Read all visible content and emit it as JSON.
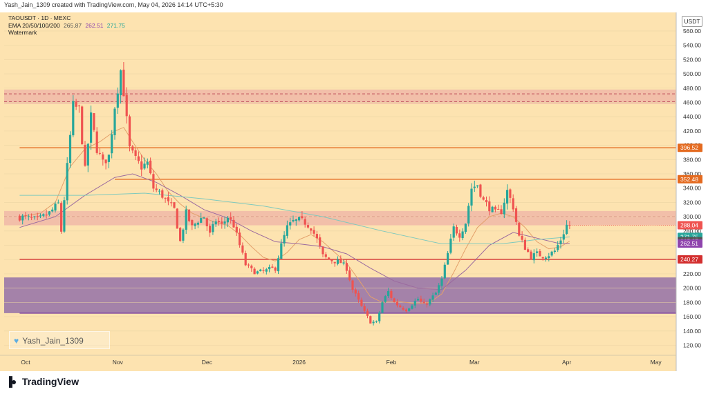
{
  "header": "Yash_Jain_1309 created with TradingView.com, May 04, 2026 14:14 UTC+5:30",
  "legend": {
    "symbol": "TAOUSDT · 1D · MEXC",
    "ema_label": "EMA 20/50/100/200",
    "ema_values": [
      "265.87",
      "262.51",
      "271.75"
    ],
    "watermark": "Watermark"
  },
  "currency": "USDT",
  "watermark_user": "Yash_Jain_1309",
  "footer": {
    "brand": "TradingView"
  },
  "colors": {
    "background": "#fde3b0",
    "supply_zone": "#f0b8a8",
    "demand_zone": "#9c79a8",
    "up_candle": "#26a69a",
    "down_candle": "#ef5350",
    "horizontal_level": "#e46a1f",
    "support_level": "#d32f2f",
    "ema_orange": "#e3a06b",
    "ema_purple": "#9b6a9f",
    "ema_teal": "#7fc9bd"
  },
  "chart_data": {
    "type": "candlestick",
    "ylim": [
      106,
      586
    ],
    "y_ticks": [
      120,
      140,
      160,
      180,
      200,
      220,
      240,
      260,
      280,
      300,
      320,
      340,
      360,
      380,
      400,
      420,
      440,
      460,
      480,
      500,
      520,
      540,
      560
    ],
    "x_ticks": [
      {
        "label": "Oct",
        "day": 0
      },
      {
        "label": "Nov",
        "day": 31
      },
      {
        "label": "Dec",
        "day": 61
      },
      {
        "label": "2026",
        "day": 92
      },
      {
        "label": "Feb",
        "day": 123
      },
      {
        "label": "Mar",
        "day": 151
      },
      {
        "label": "Apr",
        "day": 182
      },
      {
        "label": "May",
        "day": 212
      }
    ],
    "price_tags": [
      {
        "label": "396.52",
        "value": 396.52,
        "color": "#e46a1f"
      },
      {
        "label": "352.48",
        "value": 352.48,
        "color": "#e46a1f"
      },
      {
        "label": "288.04",
        "value": 288.04,
        "color": "#ef5350"
      },
      {
        "label": "271.75",
        "value": 271.75,
        "color": "#26a69a"
      },
      {
        "label": "265.87",
        "value": 265.87,
        "color": "#555555"
      },
      {
        "label": "262.51",
        "value": 262.51,
        "color": "#8e44ad"
      },
      {
        "label": "240.27",
        "value": 240.27,
        "color": "#d32f2f"
      }
    ],
    "zones": [
      {
        "name": "supply",
        "top": 478,
        "bottom": 458,
        "dashed": [
          472,
          461
        ]
      },
      {
        "name": "resistance",
        "top": 308,
        "bottom": 288,
        "dashed": [
          300
        ]
      },
      {
        "name": "demand",
        "top": 215,
        "bottom": 165
      }
    ],
    "levels": [
      {
        "value": 396.52,
        "start_day": -2,
        "color": "#e46a1f"
      },
      {
        "value": 352.48,
        "start_day": 30,
        "color": "#e46a1f"
      },
      {
        "value": 240.27,
        "start_day": -2,
        "color": "#d32f2f"
      },
      {
        "value": 165,
        "start_day": -2,
        "color": "#7b3fa0"
      }
    ],
    "last_price": 288.04,
    "close_path": [
      [
        -2,
        300
      ],
      [
        4,
        295
      ],
      [
        8,
        305
      ],
      [
        11,
        318
      ],
      [
        12,
        280
      ],
      [
        14,
        370
      ],
      [
        16,
        455
      ],
      [
        18,
        450
      ],
      [
        20,
        365
      ],
      [
        22,
        440
      ],
      [
        24,
        395
      ],
      [
        26,
        375
      ],
      [
        28,
        385
      ],
      [
        30,
        455
      ],
      [
        32,
        505
      ],
      [
        33,
        475
      ],
      [
        35,
        395
      ],
      [
        37,
        380
      ],
      [
        39,
        370
      ],
      [
        41,
        375
      ],
      [
        43,
        340
      ],
      [
        46,
        330
      ],
      [
        48,
        318
      ],
      [
        50,
        310
      ],
      [
        52,
        265
      ],
      [
        54,
        305
      ],
      [
        56,
        285
      ],
      [
        58,
        295
      ],
      [
        60,
        300
      ],
      [
        62,
        275
      ],
      [
        64,
        295
      ],
      [
        66,
        288
      ],
      [
        68,
        300
      ],
      [
        70,
        288
      ],
      [
        72,
        260
      ],
      [
        74,
        233
      ],
      [
        76,
        225
      ],
      [
        78,
        222
      ],
      [
        80,
        223
      ],
      [
        82,
        226
      ],
      [
        84,
        228
      ],
      [
        86,
        260
      ],
      [
        88,
        285
      ],
      [
        90,
        293
      ],
      [
        92,
        295
      ],
      [
        94,
        292
      ],
      [
        96,
        285
      ],
      [
        98,
        268
      ],
      [
        100,
        245
      ],
      [
        102,
        240
      ],
      [
        104,
        238
      ],
      [
        106,
        236
      ],
      [
        108,
        228
      ],
      [
        110,
        198
      ],
      [
        112,
        182
      ],
      [
        114,
        166
      ],
      [
        116,
        153
      ],
      [
        118,
        152
      ],
      [
        120,
        180
      ],
      [
        122,
        195
      ],
      [
        124,
        180
      ],
      [
        126,
        174
      ],
      [
        128,
        170
      ],
      [
        130,
        178
      ],
      [
        132,
        185
      ],
      [
        134,
        176
      ],
      [
        136,
        183
      ],
      [
        138,
        193
      ],
      [
        140,
        212
      ],
      [
        142,
        248
      ],
      [
        144,
        284
      ],
      [
        146,
        275
      ],
      [
        148,
        292
      ],
      [
        150,
        340
      ],
      [
        152,
        345
      ],
      [
        154,
        322
      ],
      [
        156,
        313
      ],
      [
        158,
        305
      ],
      [
        160,
        308
      ],
      [
        162,
        336
      ],
      [
        164,
        314
      ],
      [
        166,
        272
      ],
      [
        168,
        257
      ],
      [
        170,
        244
      ],
      [
        172,
        248
      ],
      [
        174,
        245
      ],
      [
        176,
        247
      ],
      [
        178,
        252
      ],
      [
        180,
        268
      ],
      [
        182,
        288
      ],
      [
        183,
        288.04
      ]
    ],
    "ema_paths": [
      {
        "name": "EMA 20",
        "color": "#e3a06b",
        "points": [
          [
            -2,
            300
          ],
          [
            5,
            305
          ],
          [
            10,
            320
          ],
          [
            15,
            370
          ],
          [
            20,
            395
          ],
          [
            25,
            405
          ],
          [
            30,
            420
          ],
          [
            33,
            425
          ],
          [
            36,
            405
          ],
          [
            40,
            380
          ],
          [
            44,
            360
          ],
          [
            48,
            335
          ],
          [
            52,
            318
          ],
          [
            56,
            305
          ],
          [
            60,
            298
          ],
          [
            64,
            292
          ],
          [
            68,
            288
          ],
          [
            72,
            275
          ],
          [
            76,
            258
          ],
          [
            80,
            243
          ],
          [
            84,
            238
          ],
          [
            88,
            250
          ],
          [
            92,
            268
          ],
          [
            96,
            275
          ],
          [
            100,
            265
          ],
          [
            104,
            250
          ],
          [
            108,
            235
          ],
          [
            112,
            212
          ],
          [
            116,
            188
          ],
          [
            120,
            180
          ],
          [
            124,
            182
          ],
          [
            128,
            180
          ],
          [
            132,
            178
          ],
          [
            136,
            180
          ],
          [
            140,
            192
          ],
          [
            144,
            222
          ],
          [
            148,
            255
          ],
          [
            152,
            285
          ],
          [
            156,
            300
          ],
          [
            160,
            305
          ],
          [
            164,
            300
          ],
          [
            168,
            285
          ],
          [
            172,
            265
          ],
          [
            176,
            255
          ],
          [
            180,
            258
          ],
          [
            183,
            265.87
          ]
        ]
      },
      {
        "name": "EMA 50",
        "color": "#9b6a9f",
        "points": [
          [
            -2,
            285
          ],
          [
            10,
            300
          ],
          [
            20,
            330
          ],
          [
            30,
            355
          ],
          [
            36,
            360
          ],
          [
            44,
            348
          ],
          [
            52,
            330
          ],
          [
            60,
            310
          ],
          [
            68,
            298
          ],
          [
            76,
            280
          ],
          [
            84,
            265
          ],
          [
            92,
            262
          ],
          [
            100,
            258
          ],
          [
            108,
            248
          ],
          [
            116,
            228
          ],
          [
            124,
            210
          ],
          [
            132,
            200
          ],
          [
            140,
            198
          ],
          [
            148,
            225
          ],
          [
            156,
            260
          ],
          [
            164,
            278
          ],
          [
            172,
            270
          ],
          [
            180,
            262
          ],
          [
            183,
            262.51
          ]
        ]
      },
      {
        "name": "EMA 100",
        "color": "#7fc9bd",
        "points": [
          [
            -2,
            330
          ],
          [
            20,
            330
          ],
          [
            40,
            333
          ],
          [
            60,
            325
          ],
          [
            80,
            315
          ],
          [
            100,
            300
          ],
          [
            120,
            280
          ],
          [
            140,
            262
          ],
          [
            160,
            262
          ],
          [
            172,
            268
          ],
          [
            183,
            271.75
          ]
        ]
      }
    ]
  }
}
